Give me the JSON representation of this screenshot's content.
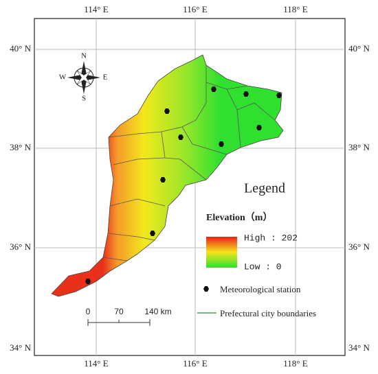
{
  "graticule": {
    "longitudes": [
      "114° E",
      "116° E",
      "118° E"
    ],
    "latitudes": [
      "40° N",
      "38° N",
      "36° N",
      "34° N"
    ]
  },
  "compass": {
    "north": "N",
    "south": "S",
    "east": "E",
    "west": "W"
  },
  "legend": {
    "title": "Legend",
    "elevation_title": "Elevation（m）",
    "high": "High : 202",
    "low": "Low : 0",
    "station": "Meteorological station",
    "boundary": "Prefectural city boundaries"
  },
  "scale_bar": {
    "labels": [
      "0",
      "70",
      "140 km"
    ]
  }
}
